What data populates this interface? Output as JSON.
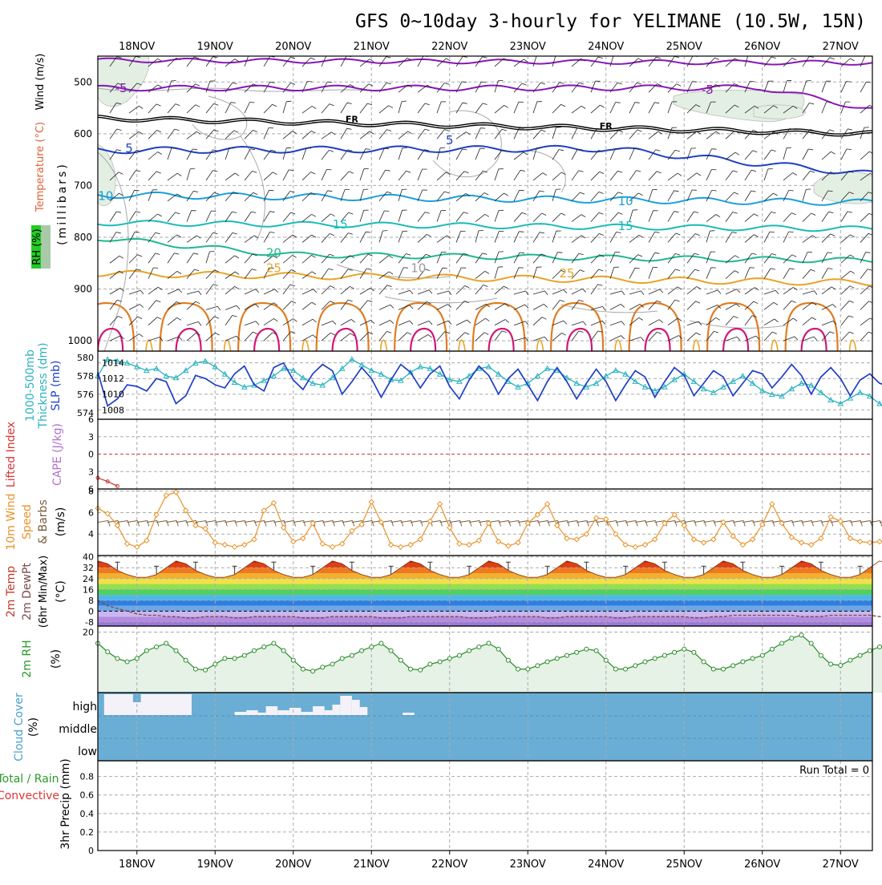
{
  "title": "GFS 0~10day 3-hourly for YELIMANE (10.5W, 15N)",
  "dates": [
    "18NOV",
    "19NOV",
    "20NOV",
    "21NOV",
    "22NOV",
    "23NOV",
    "24NOV",
    "25NOV",
    "26NOV",
    "27NOV"
  ],
  "colors": {
    "frame": "#000000",
    "grid": "#aaaaaa",
    "thickness": "#2ab3c0",
    "slp": "#1f3fc4",
    "li_zero": "#dd3333",
    "li": "#cc3333",
    "wind_speed": "#e8932a",
    "wind_barb": "#7a5a3a",
    "rh_line": "#2a8a2a",
    "rh_fill": "#e6f2e6",
    "cloud": "#6aaed6",
    "cloud_clear": "#f4f2f8",
    "dewpoint": "#7a4a4a",
    "temp_band": [
      "#b38be0",
      "#cbb6ef",
      "#6fa7e6",
      "#2f7fe0",
      "#4fb6ea",
      "#50d060",
      "#94e050",
      "#f2e04a",
      "#f2b030",
      "#f07820",
      "#e04010",
      "#b01010"
    ]
  },
  "chart_data": [
    {
      "id": "upper-air",
      "type": "contour",
      "ylabel": "(millibars)",
      "ylabel_rh": "RH (%)",
      "ylabel_temp": "Temperature (°C)",
      "ylabel_wind": "Wind (m/s)",
      "y_ticks": [
        500,
        600,
        700,
        800,
        900,
        1000
      ],
      "ylim": [
        450,
        1020
      ],
      "contour_labels": [
        {
          "text": "-5",
          "x": 17.8,
          "p": 512
        },
        {
          "text": "-5",
          "x": 25.3,
          "p": 515
        },
        {
          "text": "FR",
          "x": 20.75,
          "p": 570
        },
        {
          "text": "FR",
          "x": 24.0,
          "p": 583
        },
        {
          "text": "-5",
          "x": 17.9,
          "p": 628
        },
        {
          "text": "-5",
          "x": 22.0,
          "p": 613
        },
        {
          "text": "10",
          "x": 17.6,
          "p": 720
        },
        {
          "text": "10",
          "x": 24.25,
          "p": 730
        },
        {
          "text": "15",
          "x": 20.6,
          "p": 775
        },
        {
          "text": "15",
          "x": 24.25,
          "p": 778
        },
        {
          "text": "20",
          "x": 19.75,
          "p": 830
        },
        {
          "text": "25",
          "x": 19.75,
          "p": 860
        },
        {
          "text": "25",
          "x": 23.5,
          "p": 870
        },
        {
          "text": "10",
          "x": 21.6,
          "p": 860
        }
      ]
    },
    {
      "id": "thickness-slp",
      "type": "line",
      "ylabel_left": "1000-500mb Thickness (dm)",
      "ylabel_right": "SLP (mb)",
      "left_ticks": [
        574,
        576,
        578,
        580
      ],
      "right_ticks": [
        1008,
        1010,
        1012,
        1014
      ],
      "left_range": [
        573.3,
        580.7
      ],
      "right_range": [
        1006.8,
        1015.5
      ],
      "series": [
        {
          "name": "1000-500mb Thickness",
          "axis": "left",
          "values": [
            578.0,
            579.8,
            579.6,
            579.4,
            579.0,
            578.6,
            578.8,
            578.0,
            577.8,
            578.6,
            579.4,
            579.6,
            579.0,
            578.2,
            577.3,
            576.8,
            577.0,
            577.5,
            578.0,
            578.8,
            578.6,
            577.8,
            577.2,
            577.0,
            577.8,
            578.8,
            579.8,
            579.2,
            578.6,
            578.2,
            577.6,
            577.5,
            578.4,
            579.0,
            578.8,
            578.2,
            577.6,
            577.4,
            578.0,
            578.8,
            579.0,
            578.2,
            577.4,
            576.8,
            577.2,
            578.0,
            578.8,
            578.6,
            577.8,
            577.2,
            576.8,
            577.2,
            578.0,
            578.6,
            578.2,
            577.4,
            576.8,
            576.4,
            576.8,
            577.6,
            578.2,
            577.4,
            576.6,
            576.2,
            576.8,
            577.4,
            578.0,
            577.2,
            576.4,
            576.0,
            575.8,
            576.6,
            577.2,
            577.0,
            576.2,
            575.4,
            575.0,
            575.6,
            576.2,
            575.8,
            575.0,
            574.2,
            573.6
          ]
        },
        {
          "name": "SLP",
          "axis": "right",
          "values": [
            1012.8,
            1008.5,
            1009.4,
            1011.2,
            1011.0,
            1010.4,
            1012.0,
            1011.6,
            1008.8,
            1009.8,
            1012.4,
            1012.0,
            1011.2,
            1010.8,
            1012.6,
            1013.6,
            1011.2,
            1010.4,
            1013.4,
            1014.0,
            1011.8,
            1010.6,
            1012.6,
            1013.8,
            1013.0,
            1010.0,
            1011.6,
            1013.4,
            1012.0,
            1009.6,
            1011.8,
            1013.8,
            1012.8,
            1010.8,
            1012.6,
            1013.6,
            1011.0,
            1009.4,
            1011.8,
            1013.6,
            1012.4,
            1010.0,
            1012.0,
            1013.2,
            1011.2,
            1009.2,
            1011.6,
            1013.4,
            1011.6,
            1009.4,
            1011.4,
            1013.2,
            1011.6,
            1009.2,
            1011.2,
            1013.0,
            1012.2,
            1009.6,
            1011.6,
            1013.4,
            1012.4,
            1009.8,
            1011.4,
            1013.0,
            1012.2,
            1009.8,
            1011.4,
            1013.0,
            1012.6,
            1010.8,
            1012.2,
            1013.8,
            1012.4,
            1010.0,
            1012.2,
            1013.4,
            1012.0,
            1009.8,
            1011.8,
            1012.6,
            1011.4,
            1011.0,
            1011.8
          ]
        }
      ]
    },
    {
      "id": "lifted-index-cape",
      "type": "line",
      "ylabel_left": "Lifted Index",
      "ylabel_right": "CAPE (J/kg)",
      "y_ticks": [
        -6,
        -3,
        0,
        3,
        6
      ],
      "y_tick_labels": [
        "6",
        "3",
        "0",
        "3",
        "6"
      ],
      "ylim": [
        -6,
        6
      ],
      "series": [
        {
          "name": "Lifted Index",
          "values": [
            4.1,
            4.7,
            5.5
          ]
        }
      ]
    },
    {
      "id": "wind-10m",
      "type": "line",
      "ylabel": "10m Wind Speed & Barbs (m/s)",
      "y_ticks": [
        4,
        6,
        8
      ],
      "ylim": [
        2,
        8.2
      ],
      "series": [
        {
          "name": "10m Wind Speed",
          "values": [
            6.4,
            5.9,
            4.8,
            3.1,
            2.8,
            3.4,
            5.8,
            7.6,
            7.9,
            6.2,
            4.8,
            4.5,
            3.2,
            3.0,
            2.8,
            3.0,
            3.5,
            6.2,
            6.9,
            4.6,
            3.3,
            3.6,
            5.0,
            3.1,
            2.8,
            3.1,
            4.3,
            4.9,
            7.0,
            5.1,
            3.0,
            2.8,
            3.0,
            3.5,
            5.2,
            6.8,
            4.6,
            3.1,
            3.0,
            3.4,
            5.0,
            3.3,
            2.9,
            3.2,
            5.0,
            5.8,
            6.8,
            4.8,
            3.6,
            3.5,
            4.0,
            5.5,
            5.4,
            4.0,
            3.0,
            2.8,
            3.0,
            3.5,
            5.0,
            5.8,
            4.8,
            3.5,
            3.2,
            3.5,
            5.1,
            3.8,
            3.0,
            3.5,
            4.9,
            6.8,
            5.0,
            3.7,
            3.2,
            3.0,
            3.6,
            5.6,
            5.2,
            3.6,
            3.3,
            3.2,
            3.3,
            3.5,
            4.9
          ]
        }
      ]
    },
    {
      "id": "temp-dewpoint",
      "type": "area",
      "ylabel": "2m Temp 2m DewPt (6hr Min/Max) (°C)",
      "y_ticks": [
        -8,
        0,
        8,
        16,
        24,
        32,
        40
      ],
      "y_tick_labels": [
        "-8",
        "0",
        "8",
        "16",
        "24",
        "32",
        "40"
      ],
      "ylim": [
        -11,
        41
      ],
      "series": [
        {
          "name": "2m Temp",
          "values": [
            37,
            35,
            30,
            27,
            25,
            25,
            27,
            32,
            37,
            35,
            30,
            27,
            25,
            25,
            27,
            32,
            37,
            35,
            30,
            27,
            25,
            25,
            27,
            32,
            37,
            35,
            30,
            27,
            25,
            25,
            27,
            32,
            37,
            35,
            30,
            27,
            25,
            25,
            27,
            32,
            37,
            35,
            30,
            27,
            25,
            25,
            27,
            32,
            37,
            35,
            30,
            27,
            25,
            25,
            27,
            32,
            37,
            35,
            30,
            27,
            25,
            25,
            27,
            32,
            37,
            35,
            30,
            27,
            25,
            25,
            27,
            32,
            37,
            35,
            30,
            27,
            25,
            25,
            27,
            32,
            37,
            35,
            30
          ]
        },
        {
          "name": "2m DewPt",
          "values": [
            8,
            4,
            2,
            0,
            -2,
            -3,
            -3,
            -4,
            -4,
            -5,
            -5,
            -4,
            -4,
            -4,
            -5,
            -5,
            -4,
            -4,
            -4,
            -4,
            -4,
            -5,
            -5,
            -5,
            -4,
            -4,
            -4,
            -4,
            -4,
            -5,
            -5,
            -5,
            -4,
            -4,
            -4,
            -4,
            -4,
            -4,
            -5,
            -5,
            -5,
            -4,
            -4,
            -4,
            -4,
            -4,
            -5,
            -5,
            -4,
            -4,
            -4,
            -4,
            -4,
            -5,
            -5,
            -4,
            -4,
            -4,
            -4,
            -4,
            -4,
            -5,
            -5,
            -4,
            -4,
            -3,
            -3,
            -3,
            -3,
            -3,
            -3,
            -3,
            -4,
            -4,
            -4,
            -3,
            -3,
            -3,
            -3,
            -3,
            -4,
            -4,
            -4
          ]
        }
      ]
    },
    {
      "id": "rh-2m",
      "type": "line",
      "ylabel": "2m RH (%)",
      "y_ticks": [
        20
      ],
      "ylim": [
        0,
        22
      ],
      "series": [
        {
          "name": "2m RH",
          "values": [
            16.3,
            13.5,
            11.3,
            10.2,
            11.3,
            13.9,
            15.1,
            16.3,
            13.9,
            10.7,
            7.8,
            7.5,
            9.4,
            11.3,
            11.3,
            12.3,
            13.9,
            15.1,
            16.3,
            13.9,
            10.7,
            7.8,
            7.1,
            8.4,
            9.4,
            11.3,
            12.3,
            13.9,
            15.1,
            16.3,
            13.9,
            10.7,
            7.8,
            7.5,
            9.4,
            10.2,
            11.3,
            12.3,
            13.9,
            15.1,
            16.3,
            14.4,
            10.7,
            7.8,
            7.8,
            8.9,
            10.2,
            11.3,
            12.3,
            13.3,
            14.4,
            13.9,
            10.7,
            7.8,
            7.8,
            8.9,
            10.2,
            11.3,
            12.3,
            13.3,
            14.4,
            13.3,
            10.2,
            7.8,
            7.8,
            8.9,
            10.2,
            11.3,
            12.3,
            14.4,
            16.3,
            18.0,
            19.0,
            16.3,
            12.3,
            9.4,
            9.0,
            10.7,
            12.3,
            13.9,
            15.1,
            16.3,
            17.2
          ]
        }
      ]
    },
    {
      "id": "cloud-cover",
      "type": "area",
      "ylabel": "Cloud Cover (%)",
      "tick_labels": [
        "high",
        "middle",
        "low"
      ]
    },
    {
      "id": "precip",
      "type": "bar",
      "ylabel_left": "Total / Rain Convective",
      "ylabel": "3hr Precip (mm)",
      "y_ticks": [
        0,
        0.2,
        0.4,
        0.6,
        0.8
      ],
      "y_tick_labels": [
        "0",
        "0.2",
        "0.4",
        "0.6",
        "0.8"
      ],
      "ylim": [
        0,
        0.97
      ],
      "run_total": "Run Total = 0",
      "values": []
    }
  ]
}
